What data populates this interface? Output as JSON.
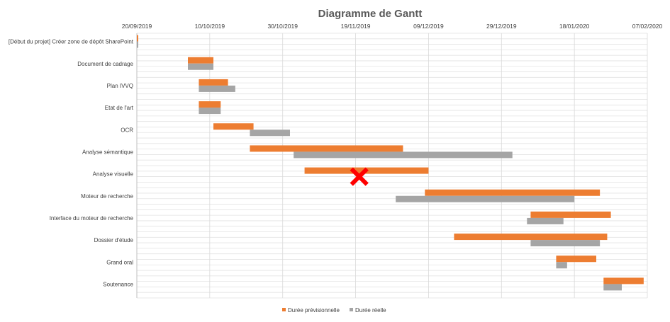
{
  "chart_data": {
    "type": "bar",
    "orientation": "horizontal",
    "title": "Diagramme de Gantt",
    "x_ticks": [
      "20/09/2019",
      "10/10/2019",
      "30/10/2019",
      "19/11/2019",
      "09/12/2019",
      "29/12/2019",
      "18/01/2020",
      "07/02/2020"
    ],
    "xlim": [
      "2019-09-20",
      "2020-02-07"
    ],
    "x_axis_position": "top",
    "grid": true,
    "legend_position": "bottom",
    "categories": [
      "[Début du projet] Créer zone de dépôt SharePoint",
      "Document de cadrage",
      "Plan IVVQ",
      "Etat de l'art",
      "OCR",
      "Analyse sémantique",
      "Analyse visuelle",
      "Moteur de recherche",
      "Interface du moteur de recherche",
      "Dossier d'étude",
      "Grand oral",
      "Soutenance"
    ],
    "series": [
      {
        "name": "Durée prévisionnelle",
        "color": "#ed7d31",
        "bars": [
          {
            "start": "2019-09-20",
            "end": "2019-09-20"
          },
          {
            "start": "2019-10-04",
            "end": "2019-10-11"
          },
          {
            "start": "2019-10-07",
            "end": "2019-10-15"
          },
          {
            "start": "2019-10-07",
            "end": "2019-10-13"
          },
          {
            "start": "2019-10-11",
            "end": "2019-10-22"
          },
          {
            "start": "2019-10-21",
            "end": "2019-12-02"
          },
          {
            "start": "2019-11-05",
            "end": "2019-12-09"
          },
          {
            "start": "2019-12-08",
            "end": "2020-01-25"
          },
          {
            "start": "2020-01-06",
            "end": "2020-01-28"
          },
          {
            "start": "2019-12-16",
            "end": "2020-01-27"
          },
          {
            "start": "2020-01-13",
            "end": "2020-01-24"
          },
          {
            "start": "2020-01-26",
            "end": "2020-02-06"
          }
        ]
      },
      {
        "name": "Durée réelle",
        "color": "#a5a5a5",
        "bars": [
          {
            "start": "2019-09-20",
            "end": "2019-09-20"
          },
          {
            "start": "2019-10-04",
            "end": "2019-10-11"
          },
          {
            "start": "2019-10-07",
            "end": "2019-10-17"
          },
          {
            "start": "2019-10-07",
            "end": "2019-10-13"
          },
          {
            "start": "2019-10-21",
            "end": "2019-11-01"
          },
          {
            "start": "2019-11-02",
            "end": "2020-01-01"
          },
          null,
          {
            "start": "2019-11-30",
            "end": "2020-01-18"
          },
          {
            "start": "2020-01-05",
            "end": "2020-01-15"
          },
          {
            "start": "2020-01-06",
            "end": "2020-01-25"
          },
          {
            "start": "2020-01-13",
            "end": "2020-01-16"
          },
          {
            "start": "2020-01-26",
            "end": "2020-01-31"
          }
        ]
      }
    ],
    "annotations": [
      {
        "type": "cross-mark",
        "color": "#ff0000",
        "category": "Analyse visuelle",
        "date": "2019-11-20"
      }
    ]
  }
}
